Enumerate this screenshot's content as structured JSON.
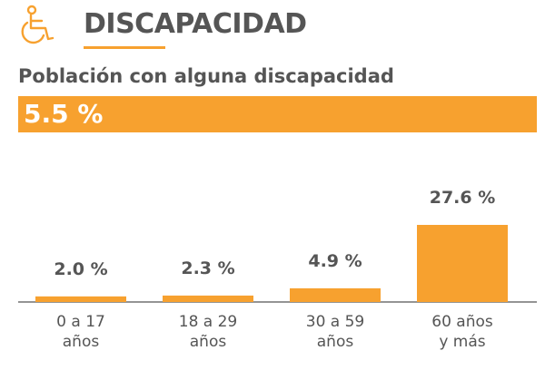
{
  "header": {
    "title": "DISCAPACIDAD",
    "icon": "wheelchair-icon"
  },
  "subtitle": "Población con alguna discapacidad",
  "highlight": {
    "value": "5.5 %"
  },
  "colors": {
    "accent": "#F7A12F",
    "text": "#555555",
    "axis": "#555555"
  },
  "chart_data": {
    "type": "bar",
    "categories": [
      [
        "0 a 17",
        "años"
      ],
      [
        "18 a 29",
        "años"
      ],
      [
        "30 a 59",
        "años"
      ],
      [
        "60 años",
        "y más"
      ]
    ],
    "values": [
      2.0,
      2.3,
      4.9,
      27.6
    ],
    "value_labels": [
      "2.0 %",
      "2.3 %",
      "4.9 %",
      "27.6 %"
    ],
    "ylim": [
      0,
      27.6
    ],
    "title": "",
    "xlabel": "",
    "ylabel": ""
  }
}
